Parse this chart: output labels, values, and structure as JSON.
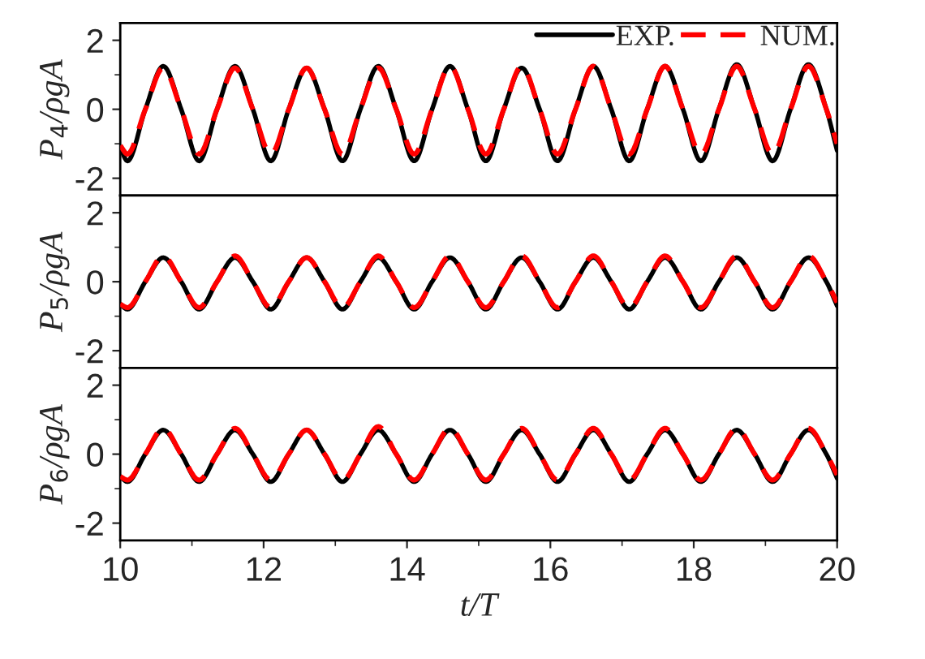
{
  "chart_data": [
    {
      "type": "line",
      "ylabel": "P$_{4}$/ρgA",
      "xlim": [
        10,
        20
      ],
      "xticks": [
        10,
        12,
        14,
        16,
        18,
        20
      ],
      "ylim": [
        -2.5,
        2.5
      ],
      "yticks": [
        -2,
        0,
        2
      ],
      "tick_labels": "y",
      "legend": "top right",
      "grid": false,
      "x": [
        10,
        10.1,
        10.35,
        10.6,
        10.85,
        11.1,
        11.35,
        11.6,
        11.85,
        12.1,
        12.35,
        12.6,
        12.85,
        13.1,
        13.35,
        13.6,
        13.85,
        14.1,
        14.35,
        14.6,
        14.85,
        15.1,
        15.35,
        15.6,
        15.85,
        16.1,
        16.35,
        16.6,
        16.85,
        17.1,
        17.35,
        17.6,
        17.85,
        18.1,
        18.35,
        18.6,
        18.85,
        19.1,
        19.35,
        19.6,
        19.85,
        20
      ],
      "series": [
        {
          "name": "EXP.",
          "color": "#000000",
          "line_style": "solid",
          "values": [
            -1.1,
            -1.5,
            0,
            1.25,
            0,
            -1.5,
            0,
            1.25,
            0,
            -1.5,
            0,
            1.2,
            0,
            -1.5,
            0,
            1.25,
            0,
            -1.5,
            0,
            1.25,
            0,
            -1.5,
            0,
            1.2,
            0,
            -1.5,
            0,
            1.25,
            0,
            -1.5,
            0,
            1.25,
            0,
            -1.5,
            0,
            1.3,
            0,
            -1.5,
            0,
            1.3,
            0,
            -1.2
          ]
        },
        {
          "name": "NUM.",
          "color": "#ff0000",
          "line_style": "dashed",
          "values": [
            -1.05,
            -1.3,
            0,
            1.2,
            0,
            -1.3,
            0,
            1.2,
            0,
            -1.3,
            0,
            1.2,
            0,
            -1.3,
            0,
            1.2,
            0,
            -1.3,
            0,
            1.25,
            0,
            -1.3,
            0,
            1.25,
            0,
            -1.3,
            0,
            1.25,
            0,
            -1.3,
            0,
            1.25,
            0,
            -1.3,
            0,
            1.25,
            0,
            -1.3,
            0,
            1.25,
            0,
            -1.0
          ]
        }
      ]
    },
    {
      "type": "line",
      "ylabel": "P$_{5}$/ρgA",
      "xlim": [
        10,
        20
      ],
      "xticks": [
        10,
        12,
        14,
        16,
        18,
        20
      ],
      "ylim": [
        -2.5,
        2.5
      ],
      "yticks": [
        -2,
        0,
        2
      ],
      "tick_labels": "y",
      "grid": false,
      "x": [
        10,
        10.1,
        10.35,
        10.6,
        10.85,
        11.1,
        11.35,
        11.6,
        11.85,
        12.1,
        12.35,
        12.6,
        12.85,
        13.1,
        13.35,
        13.6,
        13.85,
        14.1,
        14.35,
        14.6,
        14.85,
        15.1,
        15.35,
        15.6,
        15.85,
        16.1,
        16.35,
        16.6,
        16.85,
        17.1,
        17.35,
        17.6,
        17.85,
        18.1,
        18.35,
        18.6,
        18.85,
        19.1,
        19.35,
        19.6,
        19.85,
        20
      ],
      "series": [
        {
          "color": "#000000",
          "line_style": "solid",
          "values": [
            -0.65,
            -0.8,
            0,
            0.7,
            0,
            -0.8,
            0,
            0.7,
            0,
            -0.8,
            0,
            0.7,
            0,
            -0.8,
            0,
            0.7,
            0,
            -0.8,
            0,
            0.7,
            0,
            -0.8,
            0,
            0.7,
            0,
            -0.8,
            0,
            0.7,
            0,
            -0.8,
            0,
            0.7,
            0,
            -0.8,
            0,
            0.7,
            0,
            -0.8,
            0,
            0.7,
            0,
            -0.7
          ]
        },
        {
          "color": "#ff0000",
          "line_style": "dashed",
          "values": [
            -0.65,
            -0.75,
            0,
            0.75,
            0,
            -0.75,
            0,
            0.75,
            0,
            -0.75,
            0,
            0.7,
            0,
            -0.75,
            0,
            0.75,
            0,
            -0.75,
            0,
            0.75,
            0,
            -0.75,
            0,
            0.75,
            0,
            -0.75,
            0,
            0.75,
            0,
            -0.75,
            0,
            0.75,
            0,
            -0.75,
            0,
            0.75,
            0,
            -0.75,
            0,
            0.75,
            0,
            -0.6
          ]
        }
      ]
    },
    {
      "type": "line",
      "xlabel": "t/T",
      "ylabel": "P$_{6}$/ρgA",
      "xlim": [
        10,
        20
      ],
      "xticks": [
        10,
        12,
        14,
        16,
        18,
        20
      ],
      "ylim": [
        -2.5,
        2.5
      ],
      "yticks": [
        -2,
        0,
        2
      ],
      "grid": false,
      "x": [
        10,
        10.1,
        10.35,
        10.6,
        10.85,
        11.1,
        11.35,
        11.6,
        11.85,
        12.1,
        12.35,
        12.6,
        12.85,
        13.1,
        13.35,
        13.6,
        13.85,
        14.1,
        14.35,
        14.6,
        14.85,
        15.1,
        15.35,
        15.6,
        15.85,
        16.1,
        16.35,
        16.6,
        16.85,
        17.1,
        17.35,
        17.6,
        17.85,
        18.1,
        18.35,
        18.6,
        18.85,
        19.1,
        19.35,
        19.6,
        19.85,
        20
      ],
      "series": [
        {
          "color": "#000000",
          "line_style": "solid",
          "values": [
            -0.65,
            -0.8,
            0,
            0.7,
            0,
            -0.8,
            0,
            0.7,
            0,
            -0.8,
            0,
            0.7,
            0,
            -0.8,
            0,
            0.7,
            0,
            -0.8,
            0,
            0.7,
            0,
            -0.8,
            0,
            0.7,
            0,
            -0.8,
            0,
            0.7,
            0,
            -0.8,
            0,
            0.7,
            0,
            -0.8,
            0,
            0.7,
            0,
            -0.8,
            0,
            0.7,
            0,
            -0.7
          ]
        },
        {
          "color": "#ff0000",
          "line_style": "dashed",
          "values": [
            -0.65,
            -0.75,
            0,
            0.75,
            0,
            -0.75,
            0,
            0.75,
            0,
            -0.75,
            0,
            0.7,
            0,
            -0.75,
            0,
            0.8,
            0,
            -0.75,
            0,
            0.75,
            0,
            -0.75,
            0,
            0.75,
            0,
            -0.75,
            0,
            0.75,
            0,
            -0.75,
            0,
            0.75,
            0,
            -0.75,
            0,
            0.75,
            0,
            -0.75,
            0,
            0.75,
            0,
            -0.6
          ]
        }
      ]
    }
  ]
}
